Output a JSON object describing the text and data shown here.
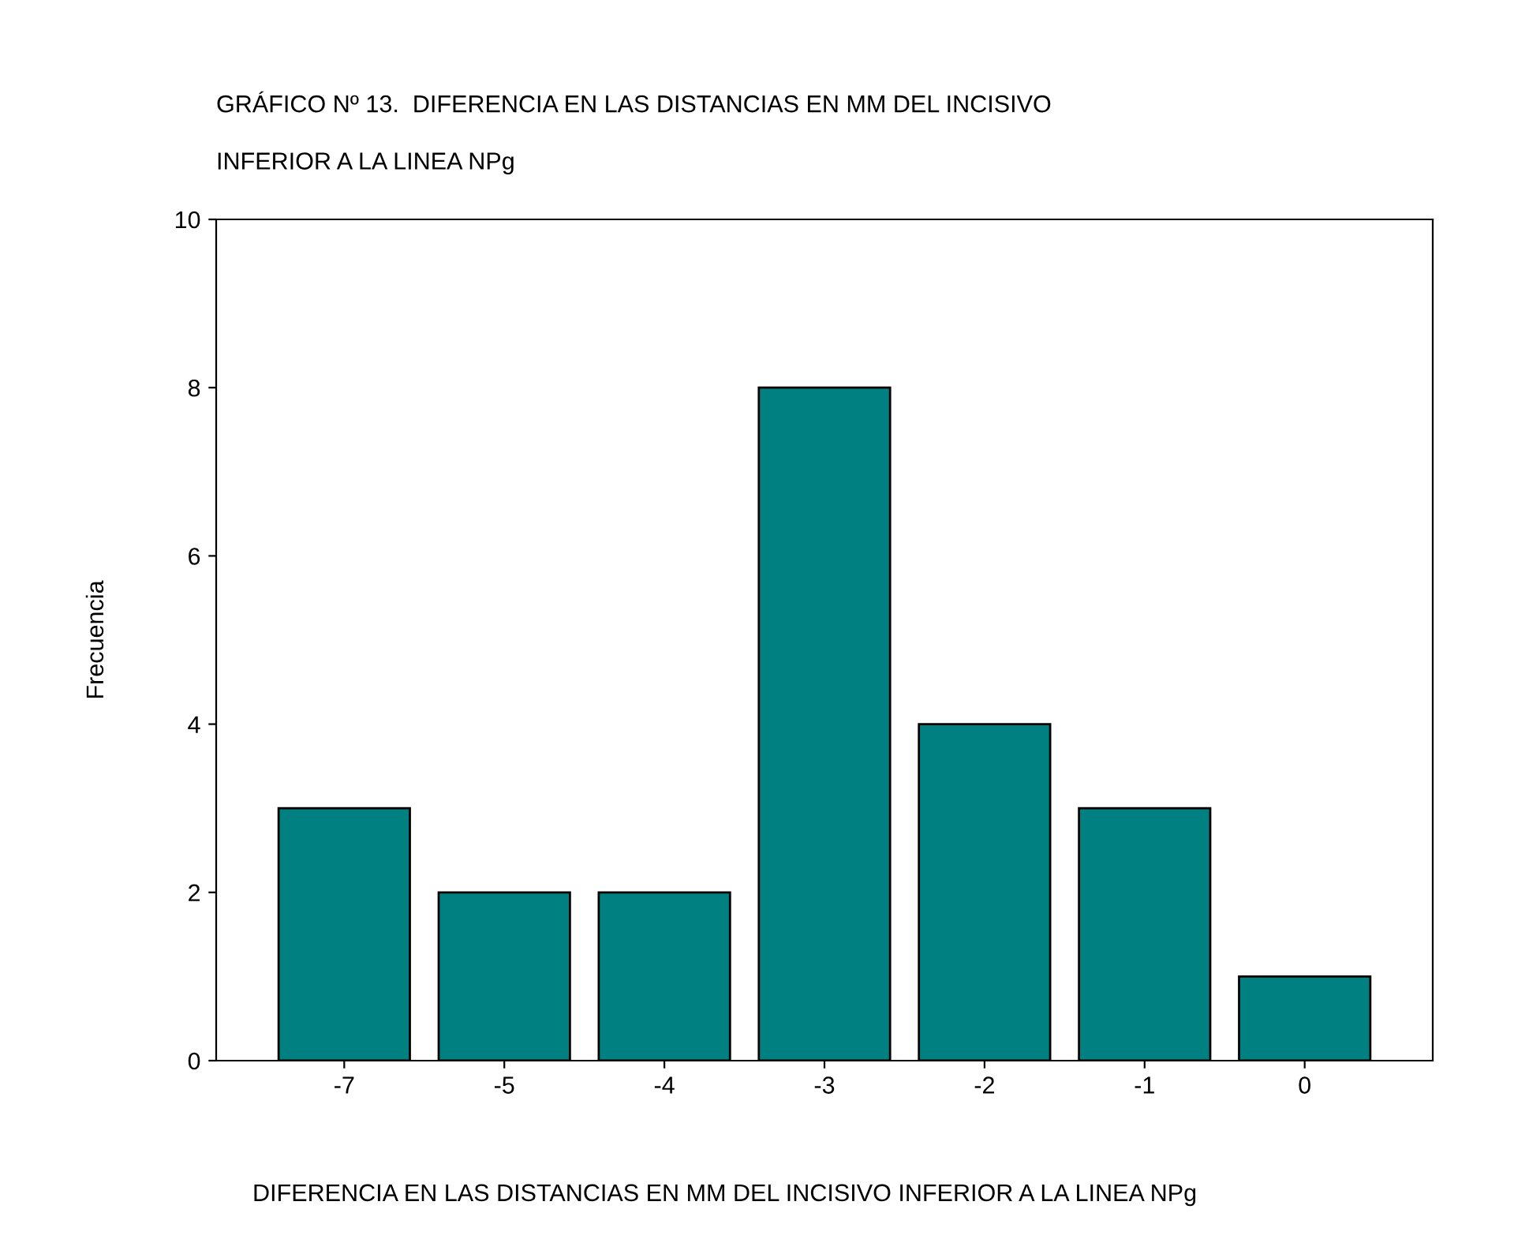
{
  "chart_data": {
    "type": "bar",
    "title": "GRÁFICO Nº 13.  DIFERENCIA EN LAS DISTANCIAS EN MM DEL INCISIVO\n\nINFERIOR A LA LINEA NPg",
    "xlabel": "DIFERENCIA EN LAS DISTANCIAS EN MM DEL INCISIVO INFERIOR A LA LINEA NPg",
    "ylabel": "Frecuencia",
    "categories": [
      "-7",
      "-5",
      "-4",
      "-3",
      "-2",
      "-1",
      "0"
    ],
    "values": [
      3,
      2,
      2,
      8,
      4,
      3,
      1
    ],
    "color": "#008080",
    "ylim": [
      0,
      10
    ],
    "yticks": [
      0,
      2,
      4,
      6,
      8,
      10
    ],
    "grid": false,
    "legend": false
  }
}
